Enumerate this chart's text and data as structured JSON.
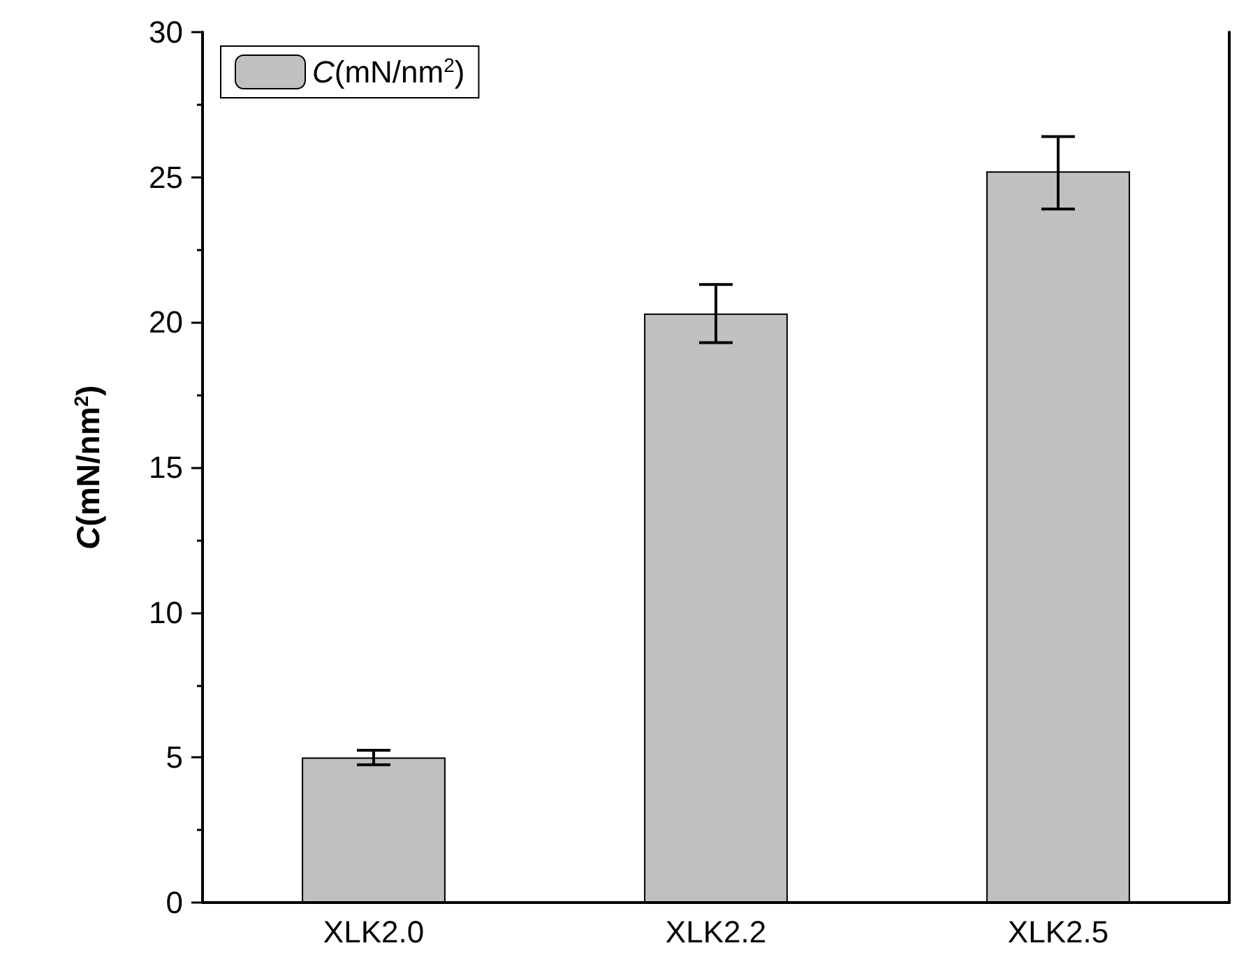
{
  "chart_data": {
    "type": "bar",
    "ylabel": "C(mN/nm$^{2}$)",
    "categories": [
      "XLK2.0",
      "XLK2.2",
      "XLK2.5"
    ],
    "series": [
      {
        "name": "C(mN/nm$^{2}$)",
        "color": "#c0c0c0",
        "values": [
          5.0,
          20.3,
          25.2
        ],
        "errors": [
          0.25,
          1.0,
          [
            23.9,
            26.4
          ]
        ]
      }
    ],
    "ylim": [
      0,
      30
    ],
    "yticks": [
      0,
      5,
      10,
      15,
      20,
      25,
      30
    ],
    "grid": false,
    "legend": "top left"
  }
}
